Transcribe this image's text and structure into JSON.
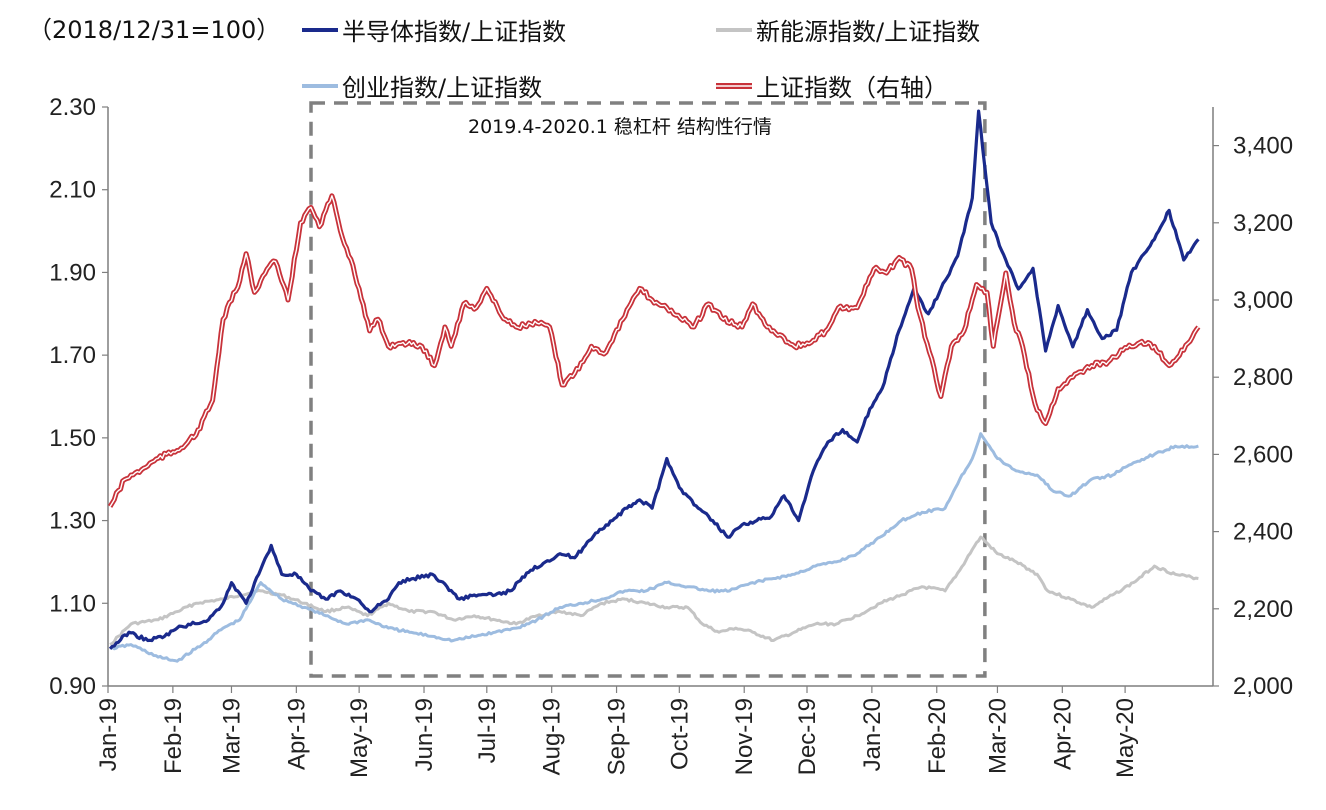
{
  "chart_data": {
    "type": "line",
    "title": "",
    "base_note": "（2018/12/31=100）",
    "annotation": "2019.4-2020.1 稳杠杆 结构性行情",
    "x_tick_labels": [
      "Jan-19",
      "Feb-19",
      "Mar-19",
      "Apr-19",
      "May-19",
      "Jun-19",
      "Jul-19",
      "Aug-19",
      "Sep-19",
      "Oct-19",
      "Nov-19",
      "Dec-19",
      "Jan-20",
      "Feb-20",
      "Mar-20",
      "Apr-20",
      "May-20"
    ],
    "y_left": {
      "lim": [
        0.9,
        2.3
      ],
      "ticks": [
        "0.90",
        "1.10",
        "1.30",
        "1.50",
        "1.70",
        "1.90",
        "2.10",
        "2.30"
      ]
    },
    "y_right": {
      "lim": [
        2000,
        3500
      ],
      "ticks": [
        "2,000",
        "2,200",
        "2,400",
        "2,600",
        "2,800",
        "3,000",
        "3,200",
        "3,400"
      ]
    },
    "highlight_period": [
      "2019-04-08",
      "2020-02-24"
    ],
    "legend": [
      {
        "key": "semi",
        "label": "半导体指数/上证指数"
      },
      {
        "key": "newenergy",
        "label": "新能源指数/上证指数"
      },
      {
        "key": "chinext",
        "label": "创业指数/上证指数"
      },
      {
        "key": "sse",
        "label": "上证指数（右轴）"
      }
    ],
    "colors": {
      "semi": "#1A2A8C",
      "newenergy": "#C4C4C4",
      "chinext": "#9DBCE0",
      "sse": "#C8323A",
      "box": "#808080"
    },
    "series": [
      {
        "name": "半导体指数/上证指数",
        "key": "semi",
        "axis": "left",
        "points": [
          [
            "2019-01-02",
            0.99
          ],
          [
            "2019-01-11",
            1.03
          ],
          [
            "2019-01-20",
            1.01
          ],
          [
            "2019-01-28",
            1.02
          ],
          [
            "2019-02-03",
            1.04
          ],
          [
            "2019-02-18",
            1.06
          ],
          [
            "2019-02-25",
            1.1
          ],
          [
            "2019-03-01",
            1.15
          ],
          [
            "2019-03-08",
            1.1
          ],
          [
            "2019-03-14",
            1.17
          ],
          [
            "2019-03-20",
            1.24
          ],
          [
            "2019-03-25",
            1.17
          ],
          [
            "2019-04-01",
            1.17
          ],
          [
            "2019-04-08",
            1.13
          ],
          [
            "2019-04-15",
            1.11
          ],
          [
            "2019-04-22",
            1.13
          ],
          [
            "2019-04-30",
            1.11
          ],
          [
            "2019-05-06",
            1.08
          ],
          [
            "2019-05-15",
            1.11
          ],
          [
            "2019-05-20",
            1.15
          ],
          [
            "2019-05-27",
            1.16
          ],
          [
            "2019-06-05",
            1.17
          ],
          [
            "2019-06-12",
            1.14
          ],
          [
            "2019-06-18",
            1.11
          ],
          [
            "2019-06-25",
            1.12
          ],
          [
            "2019-07-05",
            1.12
          ],
          [
            "2019-07-12",
            1.13
          ],
          [
            "2019-07-22",
            1.18
          ],
          [
            "2019-07-29",
            1.2
          ],
          [
            "2019-08-05",
            1.22
          ],
          [
            "2019-08-12",
            1.21
          ],
          [
            "2019-08-22",
            1.27
          ],
          [
            "2019-08-30",
            1.3
          ],
          [
            "2019-09-06",
            1.33
          ],
          [
            "2019-09-12",
            1.35
          ],
          [
            "2019-09-18",
            1.33
          ],
          [
            "2019-09-25",
            1.45
          ],
          [
            "2019-10-01",
            1.38
          ],
          [
            "2019-10-10",
            1.33
          ],
          [
            "2019-10-17",
            1.3
          ],
          [
            "2019-10-24",
            1.26
          ],
          [
            "2019-10-31",
            1.29
          ],
          [
            "2019-11-07",
            1.3
          ],
          [
            "2019-11-14",
            1.31
          ],
          [
            "2019-11-20",
            1.36
          ],
          [
            "2019-11-27",
            1.3
          ],
          [
            "2019-12-04",
            1.42
          ],
          [
            "2019-12-11",
            1.49
          ],
          [
            "2019-12-18",
            1.52
          ],
          [
            "2019-12-25",
            1.49
          ],
          [
            "2019-12-31",
            1.57
          ],
          [
            "2020-01-06",
            1.62
          ],
          [
            "2020-01-14",
            1.76
          ],
          [
            "2020-01-21",
            1.86
          ],
          [
            "2020-01-28",
            1.8
          ],
          [
            "2020-02-05",
            1.88
          ],
          [
            "2020-02-11",
            1.94
          ],
          [
            "2020-02-18",
            2.08
          ],
          [
            "2020-02-21",
            2.29
          ],
          [
            "2020-02-27",
            2.02
          ],
          [
            "2020-03-05",
            1.93
          ],
          [
            "2020-03-11",
            1.86
          ],
          [
            "2020-03-18",
            1.91
          ],
          [
            "2020-03-24",
            1.71
          ],
          [
            "2020-03-30",
            1.82
          ],
          [
            "2020-04-06",
            1.72
          ],
          [
            "2020-04-13",
            1.81
          ],
          [
            "2020-04-20",
            1.74
          ],
          [
            "2020-04-27",
            1.76
          ],
          [
            "2020-05-04",
            1.9
          ],
          [
            "2020-05-11",
            1.95
          ],
          [
            "2020-05-18",
            2.01
          ],
          [
            "2020-05-22",
            2.05
          ],
          [
            "2020-05-29",
            1.93
          ],
          [
            "2020-06-05",
            1.98
          ]
        ]
      },
      {
        "name": "新能源指数/上证指数",
        "key": "newenergy",
        "axis": "left",
        "points": [
          [
            "2019-01-02",
            1.0
          ],
          [
            "2019-01-12",
            1.05
          ],
          [
            "2019-01-25",
            1.06
          ],
          [
            "2019-02-03",
            1.08
          ],
          [
            "2019-02-12",
            1.1
          ],
          [
            "2019-02-25",
            1.11
          ],
          [
            "2019-03-05",
            1.12
          ],
          [
            "2019-03-15",
            1.13
          ],
          [
            "2019-03-25",
            1.12
          ],
          [
            "2019-04-05",
            1.1
          ],
          [
            "2019-04-15",
            1.08
          ],
          [
            "2019-04-25",
            1.09
          ],
          [
            "2019-05-05",
            1.07
          ],
          [
            "2019-05-15",
            1.1
          ],
          [
            "2019-05-25",
            1.08
          ],
          [
            "2019-06-05",
            1.08
          ],
          [
            "2019-06-15",
            1.06
          ],
          [
            "2019-06-25",
            1.07
          ],
          [
            "2019-07-05",
            1.06
          ],
          [
            "2019-07-15",
            1.05
          ],
          [
            "2019-07-25",
            1.07
          ],
          [
            "2019-08-05",
            1.08
          ],
          [
            "2019-08-15",
            1.07
          ],
          [
            "2019-08-25",
            1.1
          ],
          [
            "2019-09-05",
            1.11
          ],
          [
            "2019-09-15",
            1.1
          ],
          [
            "2019-09-25",
            1.09
          ],
          [
            "2019-10-05",
            1.09
          ],
          [
            "2019-10-12",
            1.05
          ],
          [
            "2019-10-20",
            1.03
          ],
          [
            "2019-10-28",
            1.04
          ],
          [
            "2019-11-05",
            1.03
          ],
          [
            "2019-11-15",
            1.01
          ],
          [
            "2019-11-25",
            1.03
          ],
          [
            "2019-12-05",
            1.05
          ],
          [
            "2019-12-15",
            1.05
          ],
          [
            "2019-12-25",
            1.07
          ],
          [
            "2020-01-05",
            1.1
          ],
          [
            "2020-01-15",
            1.12
          ],
          [
            "2020-01-25",
            1.14
          ],
          [
            "2020-02-05",
            1.13
          ],
          [
            "2020-02-12",
            1.18
          ],
          [
            "2020-02-18",
            1.23
          ],
          [
            "2020-02-22",
            1.26
          ],
          [
            "2020-03-01",
            1.22
          ],
          [
            "2020-03-10",
            1.2
          ],
          [
            "2020-03-20",
            1.17
          ],
          [
            "2020-03-25",
            1.13
          ],
          [
            "2020-04-05",
            1.11
          ],
          [
            "2020-04-15",
            1.09
          ],
          [
            "2020-04-25",
            1.12
          ],
          [
            "2020-05-05",
            1.15
          ],
          [
            "2020-05-15",
            1.19
          ],
          [
            "2020-05-25",
            1.17
          ],
          [
            "2020-06-05",
            1.16
          ]
        ]
      },
      {
        "name": "创业指数/上证指数",
        "key": "chinext",
        "axis": "left",
        "points": [
          [
            "2019-01-02",
            0.99
          ],
          [
            "2019-01-12",
            1.0
          ],
          [
            "2019-01-25",
            0.97
          ],
          [
            "2019-02-03",
            0.96
          ],
          [
            "2019-02-15",
            1.0
          ],
          [
            "2019-02-25",
            1.04
          ],
          [
            "2019-03-05",
            1.06
          ],
          [
            "2019-03-15",
            1.15
          ],
          [
            "2019-03-25",
            1.11
          ],
          [
            "2019-04-05",
            1.09
          ],
          [
            "2019-04-15",
            1.07
          ],
          [
            "2019-04-25",
            1.05
          ],
          [
            "2019-05-05",
            1.06
          ],
          [
            "2019-05-15",
            1.04
          ],
          [
            "2019-05-25",
            1.03
          ],
          [
            "2019-06-05",
            1.02
          ],
          [
            "2019-06-15",
            1.01
          ],
          [
            "2019-06-25",
            1.02
          ],
          [
            "2019-07-05",
            1.03
          ],
          [
            "2019-07-15",
            1.04
          ],
          [
            "2019-07-25",
            1.06
          ],
          [
            "2019-08-05",
            1.09
          ],
          [
            "2019-08-15",
            1.1
          ],
          [
            "2019-08-25",
            1.11
          ],
          [
            "2019-09-05",
            1.13
          ],
          [
            "2019-09-15",
            1.13
          ],
          [
            "2019-09-25",
            1.15
          ],
          [
            "2019-10-05",
            1.14
          ],
          [
            "2019-10-15",
            1.13
          ],
          [
            "2019-10-25",
            1.13
          ],
          [
            "2019-11-05",
            1.15
          ],
          [
            "2019-11-15",
            1.16
          ],
          [
            "2019-11-25",
            1.17
          ],
          [
            "2019-12-05",
            1.19
          ],
          [
            "2019-12-15",
            1.2
          ],
          [
            "2019-12-25",
            1.22
          ],
          [
            "2020-01-05",
            1.26
          ],
          [
            "2020-01-15",
            1.3
          ],
          [
            "2020-01-25",
            1.32
          ],
          [
            "2020-02-05",
            1.33
          ],
          [
            "2020-02-12",
            1.4
          ],
          [
            "2020-02-18",
            1.45
          ],
          [
            "2020-02-22",
            1.51
          ],
          [
            "2020-03-01",
            1.45
          ],
          [
            "2020-03-10",
            1.42
          ],
          [
            "2020-03-20",
            1.41
          ],
          [
            "2020-03-28",
            1.37
          ],
          [
            "2020-04-05",
            1.36
          ],
          [
            "2020-04-15",
            1.4
          ],
          [
            "2020-04-25",
            1.41
          ],
          [
            "2020-05-05",
            1.44
          ],
          [
            "2020-05-15",
            1.46
          ],
          [
            "2020-05-25",
            1.48
          ],
          [
            "2020-06-05",
            1.48
          ]
        ]
      },
      {
        "name": "上证指数（右轴）",
        "key": "sse",
        "axis": "right",
        "points": [
          [
            "2019-01-02",
            2465
          ],
          [
            "2019-01-09",
            2535
          ],
          [
            "2019-01-17",
            2560
          ],
          [
            "2019-01-25",
            2590
          ],
          [
            "2019-02-03",
            2610
          ],
          [
            "2019-02-12",
            2650
          ],
          [
            "2019-02-20",
            2740
          ],
          [
            "2019-02-25",
            2950
          ],
          [
            "2019-03-05",
            3050
          ],
          [
            "2019-03-08",
            3120
          ],
          [
            "2019-03-12",
            3020
          ],
          [
            "2019-03-18",
            3080
          ],
          [
            "2019-03-22",
            3100
          ],
          [
            "2019-03-28",
            3000
          ],
          [
            "2019-04-03",
            3200
          ],
          [
            "2019-04-08",
            3240
          ],
          [
            "2019-04-12",
            3190
          ],
          [
            "2019-04-18",
            3270
          ],
          [
            "2019-04-22",
            3180
          ],
          [
            "2019-04-28",
            3090
          ],
          [
            "2019-05-06",
            2920
          ],
          [
            "2019-05-10",
            2950
          ],
          [
            "2019-05-15",
            2880
          ],
          [
            "2019-05-22",
            2890
          ],
          [
            "2019-05-31",
            2880
          ],
          [
            "2019-06-06",
            2830
          ],
          [
            "2019-06-11",
            2930
          ],
          [
            "2019-06-14",
            2880
          ],
          [
            "2019-06-20",
            2990
          ],
          [
            "2019-06-26",
            2980
          ],
          [
            "2019-07-01",
            3030
          ],
          [
            "2019-07-08",
            2960
          ],
          [
            "2019-07-15",
            2930
          ],
          [
            "2019-07-25",
            2940
          ],
          [
            "2019-07-31",
            2930
          ],
          [
            "2019-08-06",
            2780
          ],
          [
            "2019-08-12",
            2810
          ],
          [
            "2019-08-20",
            2880
          ],
          [
            "2019-08-26",
            2860
          ],
          [
            "2019-09-04",
            2950
          ],
          [
            "2019-09-12",
            3030
          ],
          [
            "2019-09-18",
            3000
          ],
          [
            "2019-09-25",
            2980
          ],
          [
            "2019-10-08",
            2930
          ],
          [
            "2019-10-15",
            2990
          ],
          [
            "2019-10-22",
            2950
          ],
          [
            "2019-10-31",
            2930
          ],
          [
            "2019-11-05",
            2990
          ],
          [
            "2019-11-12",
            2930
          ],
          [
            "2019-11-18",
            2910
          ],
          [
            "2019-11-25",
            2880
          ],
          [
            "2019-12-03",
            2890
          ],
          [
            "2019-12-10",
            2920
          ],
          [
            "2019-12-16",
            2980
          ],
          [
            "2019-12-25",
            2980
          ],
          [
            "2020-01-02",
            3080
          ],
          [
            "2020-01-08",
            3070
          ],
          [
            "2020-01-14",
            3110
          ],
          [
            "2020-01-20",
            3080
          ],
          [
            "2020-01-23",
            2980
          ],
          [
            "2020-02-03",
            2750
          ],
          [
            "2020-02-08",
            2880
          ],
          [
            "2020-02-14",
            2920
          ],
          [
            "2020-02-20",
            3040
          ],
          [
            "2020-02-25",
            3020
          ],
          [
            "2020-02-28",
            2880
          ],
          [
            "2020-03-05",
            3070
          ],
          [
            "2020-03-09",
            2940
          ],
          [
            "2020-03-13",
            2880
          ],
          [
            "2020-03-19",
            2730
          ],
          [
            "2020-03-24",
            2680
          ],
          [
            "2020-03-30",
            2770
          ],
          [
            "2020-04-08",
            2810
          ],
          [
            "2020-04-15",
            2830
          ],
          [
            "2020-04-23",
            2840
          ],
          [
            "2020-04-30",
            2870
          ],
          [
            "2020-05-08",
            2890
          ],
          [
            "2020-05-15",
            2880
          ],
          [
            "2020-05-22",
            2830
          ],
          [
            "2020-05-29",
            2870
          ],
          [
            "2020-06-05",
            2930
          ]
        ]
      }
    ]
  }
}
